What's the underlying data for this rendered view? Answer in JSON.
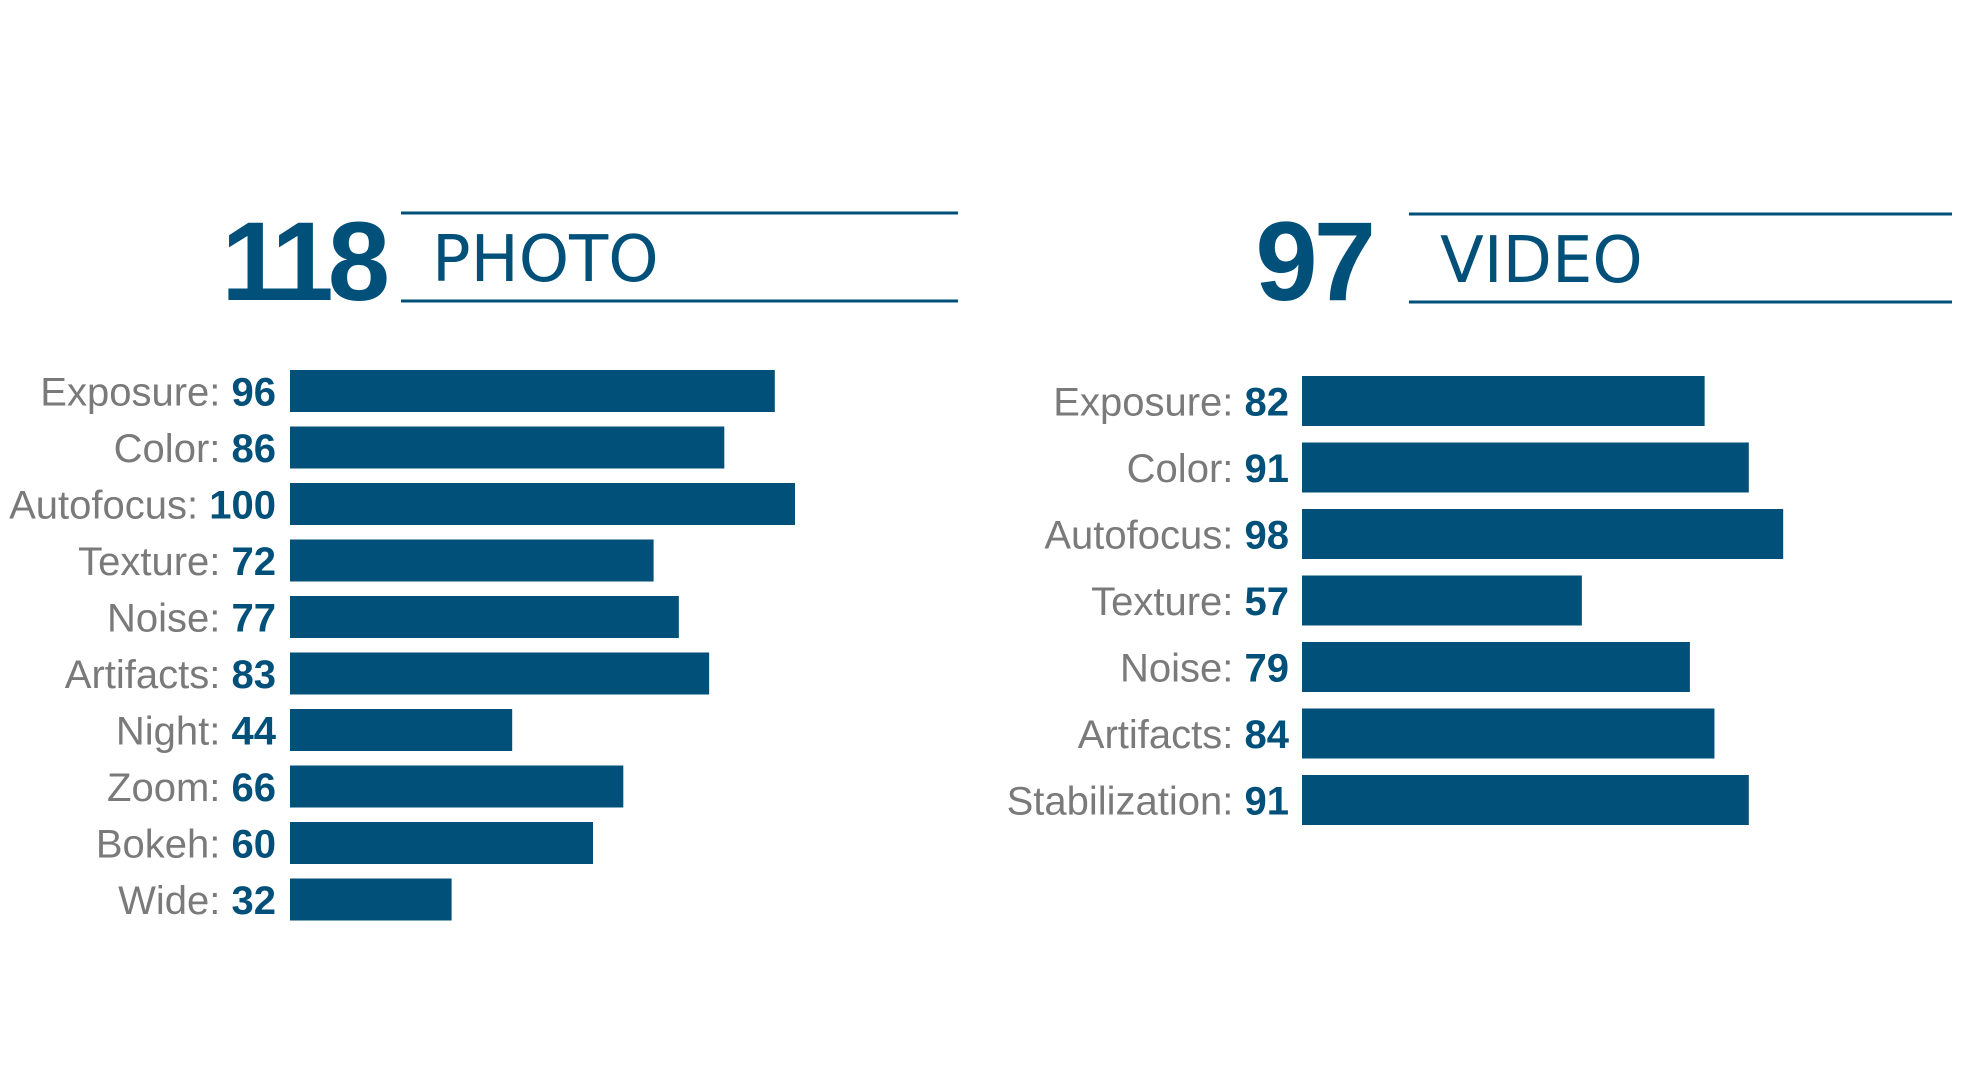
{
  "colors": {
    "accent": "#00507a",
    "label": "#7a7a7a",
    "background": "#ffffff"
  },
  "photo": {
    "score": "118",
    "title": "PHOTO"
  },
  "video": {
    "score": "97",
    "title": "VIDEO"
  },
  "chart_data": [
    {
      "type": "bar",
      "orientation": "horizontal",
      "categories": [
        "Exposure",
        "Color",
        "Autofocus",
        "Texture",
        "Noise",
        "Artifacts",
        "Night",
        "Zoom",
        "Bokeh",
        "Wide"
      ],
      "values": [
        96,
        86,
        100,
        72,
        77,
        83,
        44,
        66,
        60,
        32
      ],
      "xlim": [
        0,
        100
      ],
      "grid": false
    },
    {
      "type": "bar",
      "orientation": "horizontal",
      "categories": [
        "Exposure",
        "Color",
        "Autofocus",
        "Texture",
        "Noise",
        "Artifacts",
        "Stabilization"
      ],
      "values": [
        82,
        91,
        98,
        57,
        79,
        84,
        91
      ],
      "xlim": [
        0,
        100
      ],
      "grid": false
    }
  ]
}
